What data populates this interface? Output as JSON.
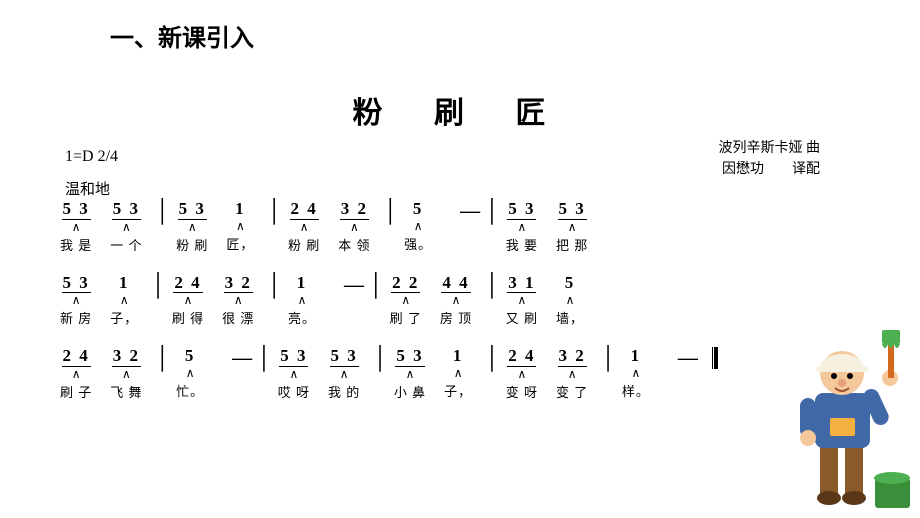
{
  "heading": "一、新课引入",
  "title": "粉 刷 匠",
  "key": "1=D 2/4",
  "tempo": "温和地",
  "composer": "波列辛斯卡娅 曲",
  "translator": "因懋功　　译配",
  "lines": [
    [
      {
        "n": "5 3",
        "l": "我 是",
        "c": "∧"
      },
      {
        "n": "5 3",
        "l": "一 个",
        "c": "∧"
      },
      {
        "bar": true
      },
      {
        "n": "5 3",
        "l": "粉 刷",
        "c": "∧"
      },
      {
        "n": "1",
        "l": "匠，",
        "c": "∧",
        "noline": true
      },
      {
        "bar": true
      },
      {
        "n": "2 4",
        "l": "粉 刷",
        "c": "∧"
      },
      {
        "n": "3 2",
        "l": "本 领",
        "c": "∧"
      },
      {
        "bar": true
      },
      {
        "n": "5",
        "l": "强。",
        "c": "∧",
        "noline": true
      },
      {
        "dash": true
      },
      {
        "bar": true
      },
      {
        "n": "5 3",
        "l": "我 要",
        "c": "∧"
      },
      {
        "n": "5 3",
        "l": "把 那",
        "c": "∧"
      }
    ],
    [
      {
        "n": "5 3",
        "l": "新 房",
        "c": "∧"
      },
      {
        "n": "1",
        "l": "子，",
        "c": "∧",
        "noline": true
      },
      {
        "bar": true
      },
      {
        "n": "2 4",
        "l": "刷 得",
        "c": "∧"
      },
      {
        "n": "3 2",
        "l": "很 漂",
        "c": "∧"
      },
      {
        "bar": true
      },
      {
        "n": "1",
        "l": "亮。",
        "c": "∧",
        "noline": true
      },
      {
        "dash": true
      },
      {
        "bar": true
      },
      {
        "n": "2 2",
        "l": "刷 了",
        "c": "∧"
      },
      {
        "n": "4 4",
        "l": "房 顶",
        "c": "∧"
      },
      {
        "bar": true
      },
      {
        "n": "3 1",
        "l": "又 刷",
        "c": "∧"
      },
      {
        "n": "5",
        "l": "墙，",
        "c": "∧",
        "noline": true
      }
    ],
    [
      {
        "n": "2 4",
        "l": "刷 子",
        "c": "∧"
      },
      {
        "n": "3 2",
        "l": "飞 舞",
        "c": "∧"
      },
      {
        "bar": true
      },
      {
        "n": "5",
        "l": "忙。",
        "c": "∧",
        "noline": true
      },
      {
        "dash": true
      },
      {
        "bar": true
      },
      {
        "n": "5 3",
        "l": "哎 呀",
        "c": "∧"
      },
      {
        "n": "5 3",
        "l": "我 的",
        "c": "∧"
      },
      {
        "bar": true
      },
      {
        "n": "5 3",
        "l": "小 鼻",
        "c": "∧"
      },
      {
        "n": "1",
        "l": "子，",
        "c": "∧",
        "noline": true
      },
      {
        "bar": true
      },
      {
        "n": "2 4",
        "l": "变 呀",
        "c": "∧"
      },
      {
        "n": "3 2",
        "l": "变 了",
        "c": "∧"
      },
      {
        "bar": true
      },
      {
        "n": "1",
        "l": "样。",
        "c": "∧",
        "noline": true
      },
      {
        "dash": true
      },
      {
        "dblbar": true
      }
    ]
  ],
  "painter": {
    "skin": "#f4c89a",
    "shirt": "#4169a8",
    "pants": "#8b5a2b",
    "hat": "#f5f0e0",
    "paint": "#4caf50",
    "bucket": "#3b8f3b",
    "brush_handle": "#d2691e"
  }
}
